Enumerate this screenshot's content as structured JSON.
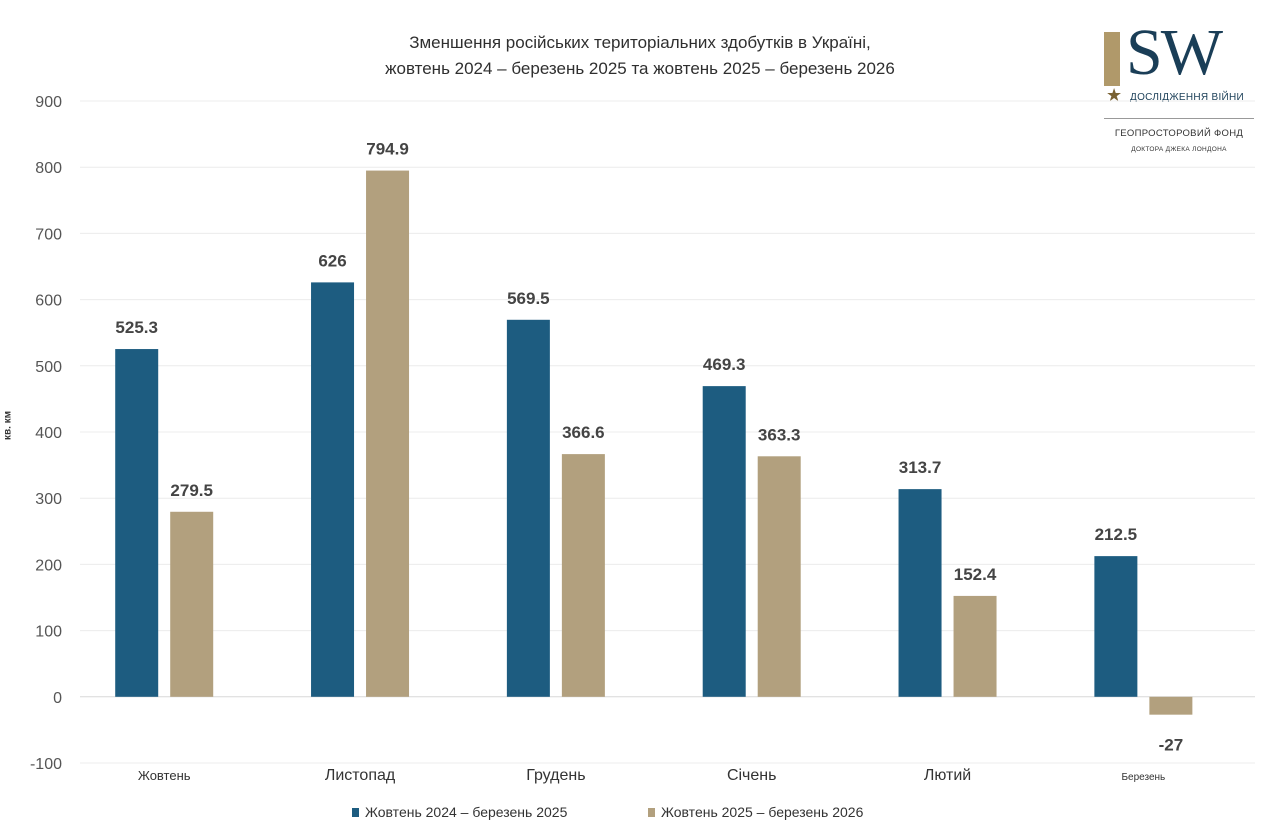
{
  "chart_data": {
    "type": "bar",
    "title": "Зменшення російських територіальних здобутків в Україні,",
    "subtitle": "жовтень 2024 – березень 2025 та жовтень 2025 – березень 2026",
    "ylabel": "кв. км",
    "ylim": [
      -100,
      900
    ],
    "yticks": [
      900,
      800,
      700,
      600,
      500,
      400,
      300,
      200,
      100,
      0,
      -100
    ],
    "grid": true,
    "legend_position": "bottom",
    "categories": [
      "Жовтень",
      "Листопад",
      "Грудень",
      "Січень",
      "Лютий",
      "Березень"
    ],
    "series": [
      {
        "name": "Жовтень 2024 – березень 2025",
        "color": "#1d5c80",
        "values": [
          525.3,
          626,
          569.5,
          469.3,
          313.7,
          212.5
        ],
        "labels": [
          "525.3",
          "626",
          "569.5",
          "469.3",
          "313.7",
          "212.5"
        ]
      },
      {
        "name": "Жовтень 2025 – березень 2026",
        "color": "#b2a07e",
        "values": [
          279.5,
          794.9,
          366.6,
          363.3,
          152.4,
          -27
        ],
        "labels": [
          "279.5",
          "794.9",
          "366.6",
          "363.3",
          "152.4",
          "-27"
        ]
      }
    ]
  },
  "logo": {
    "main": "SW",
    "subtitle": "ДОСЛІДЖЕННЯ ВІЙНИ",
    "fund_line1": "ГЕОПРОСТОРОВИЙ ФОНД",
    "fund_line2": "ДОКТОРА ДЖЕКА ЛОНДОНА"
  }
}
